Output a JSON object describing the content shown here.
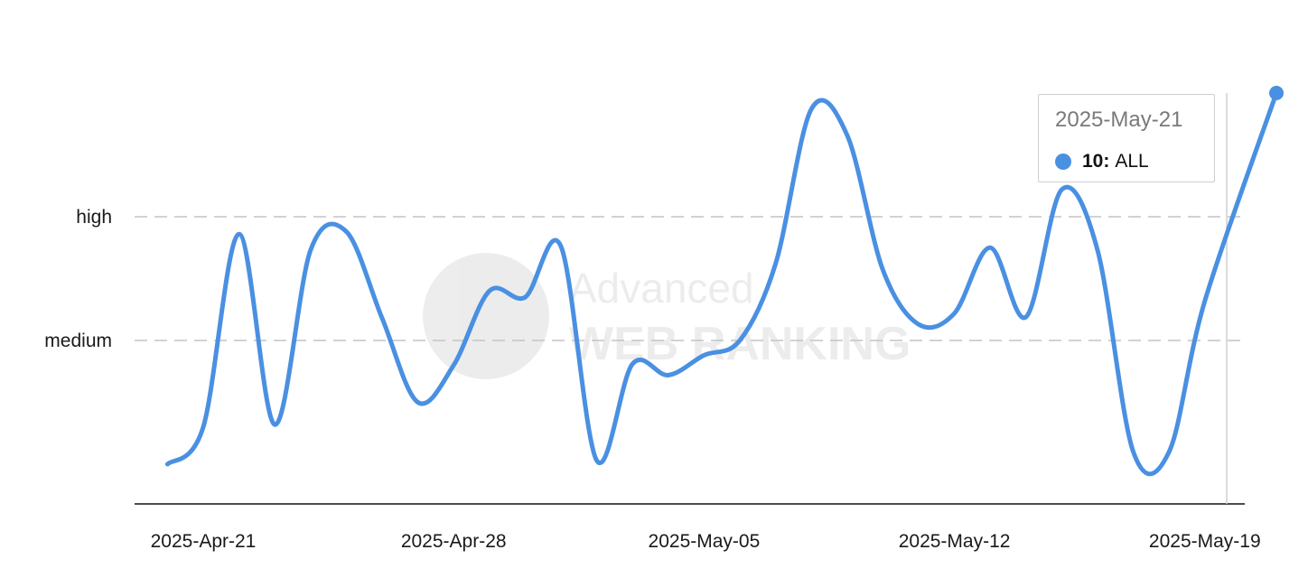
{
  "chart_data": {
    "type": "line",
    "y_categories": [
      "medium",
      "high"
    ],
    "x_tick_labels": [
      "2025-Apr-21",
      "2025-Apr-28",
      "2025-May-05",
      "2025-May-12",
      "2025-May-19"
    ],
    "series": [
      {
        "name": "ALL",
        "color": "#4a90e2",
        "values": [
          {
            "x": "2025-Apr-20",
            "y": 1.0
          },
          {
            "x": "2025-Apr-21",
            "y": 1.3
          },
          {
            "x": "2025-Apr-22",
            "y": 2.86
          },
          {
            "x": "2025-Apr-23",
            "y": 1.32
          },
          {
            "x": "2025-Apr-24",
            "y": 2.73
          },
          {
            "x": "2025-Apr-25",
            "y": 2.88
          },
          {
            "x": "2025-Apr-26",
            "y": 2.18
          },
          {
            "x": "2025-Apr-27",
            "y": 1.5
          },
          {
            "x": "2025-Apr-28",
            "y": 1.8
          },
          {
            "x": "2025-Apr-29",
            "y": 2.4
          },
          {
            "x": "2025-Apr-30",
            "y": 2.35
          },
          {
            "x": "2025-May-01",
            "y": 2.76
          },
          {
            "x": "2025-May-02",
            "y": 1.03
          },
          {
            "x": "2025-May-03",
            "y": 1.81
          },
          {
            "x": "2025-May-04",
            "y": 1.72
          },
          {
            "x": "2025-May-05",
            "y": 1.88
          },
          {
            "x": "2025-May-06",
            "y": 2.0
          },
          {
            "x": "2025-May-07",
            "y": 2.62
          },
          {
            "x": "2025-May-08",
            "y": 3.87
          },
          {
            "x": "2025-May-09",
            "y": 3.66
          },
          {
            "x": "2025-May-10",
            "y": 2.57
          },
          {
            "x": "2025-May-11",
            "y": 2.13
          },
          {
            "x": "2025-May-12",
            "y": 2.22
          },
          {
            "x": "2025-May-13",
            "y": 2.75
          },
          {
            "x": "2025-May-14",
            "y": 2.19
          },
          {
            "x": "2025-May-15",
            "y": 3.22
          },
          {
            "x": "2025-May-16",
            "y": 2.73
          },
          {
            "x": "2025-May-17",
            "y": 1.1
          },
          {
            "x": "2025-May-18",
            "y": 1.1
          },
          {
            "x": "2025-May-19",
            "y": 2.32
          },
          {
            "x": "2025-May-21",
            "y": 4.0
          }
        ]
      }
    ],
    "watermark": "Advanced WEB RANKING",
    "grid": true
  },
  "tooltip": {
    "date": "2025-May-21",
    "value_label": "10:",
    "series_label": "ALL",
    "dot_color": "#4a90e2"
  }
}
